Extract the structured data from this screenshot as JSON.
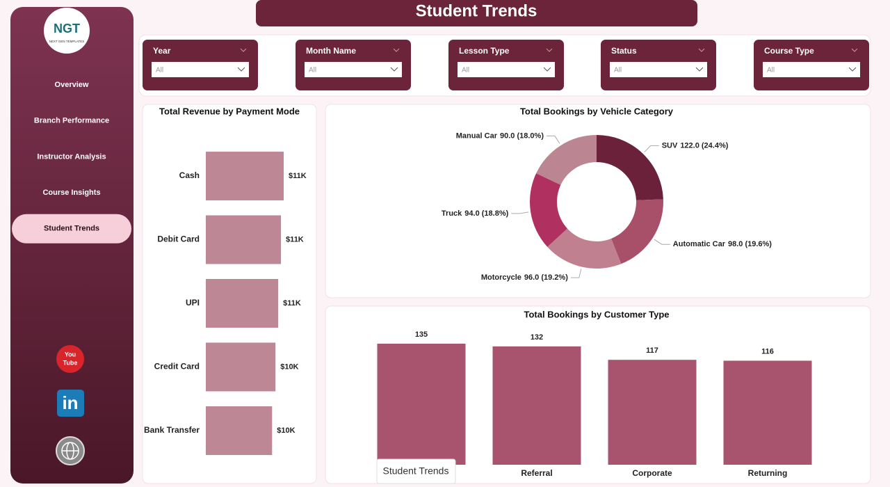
{
  "logo": {
    "mark": "NGT",
    "caption": "NEXT GEN TEMPLATES"
  },
  "nav": [
    "Overview",
    "Branch Performance",
    "Instructor Analysis",
    "Course Insights",
    "Student Trends"
  ],
  "active_nav": 4,
  "social": {
    "youtube": [
      "You",
      "Tube"
    ],
    "linkedin": "in"
  },
  "header": {
    "title": "Student Trends"
  },
  "filters": [
    {
      "label": "Year",
      "value": "All"
    },
    {
      "label": "Month Name",
      "value": "All"
    },
    {
      "label": "Lesson Type",
      "value": "All"
    },
    {
      "label": "Status",
      "value": "All"
    },
    {
      "label": "Course Type",
      "value": "All"
    }
  ],
  "tooltip": "Student Trends",
  "chart_data": [
    {
      "type": "bar",
      "orientation": "horizontal",
      "title": "Total Revenue by Payment Mode",
      "categories": [
        "Cash",
        "Debit Card",
        "UPI",
        "Credit Card",
        "Bank Transfer"
      ],
      "values": [
        11400,
        11000,
        10600,
        10200,
        9700
      ],
      "value_labels": [
        "$11K",
        "$11K",
        "$11K",
        "$10K",
        "$10K"
      ],
      "color": "#bd8796"
    },
    {
      "type": "pie",
      "donut": true,
      "title": "Total Bookings by Vehicle Category",
      "categories": [
        "SUV",
        "Automatic Car",
        "Motorcycle",
        "Truck",
        "Manual Car"
      ],
      "values": [
        122,
        98,
        96,
        94,
        90
      ],
      "value_labels": [
        "122.0 (24.4%)",
        "98.0 (19.6%)",
        "96.0 (19.2%)",
        "94.0 (18.8%)",
        "90.0 (18.0%)"
      ],
      "colors": [
        "#6b2139",
        "#a8506a",
        "#c0808f",
        "#b03060",
        "#bb8592"
      ]
    },
    {
      "type": "bar",
      "orientation": "vertical",
      "title": "Total Bookings by Customer Type",
      "categories": [
        null,
        "Referral",
        "Corporate",
        "Returning"
      ],
      "values": [
        135,
        132,
        117,
        116
      ],
      "color": "#a9546e"
    }
  ]
}
